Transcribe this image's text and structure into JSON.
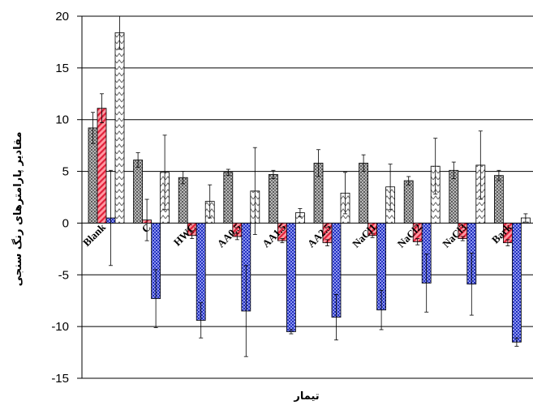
{
  "chart_data": {
    "type": "bar",
    "title": "",
    "xlabel": "تیمار",
    "ylabel": "مقادیر پارامترهای رنگ سنجی",
    "ylim": [
      -15,
      20
    ],
    "y_ticks": [
      20,
      15,
      10,
      5,
      0,
      -5,
      -10,
      -15
    ],
    "grid": true,
    "legend": "none",
    "categories": [
      "Blank",
      "C",
      "HWC",
      "AA0.5",
      "AA1.5",
      "AA2.5",
      "NaCl1",
      "NaCl2",
      "NaCl3",
      "Bark"
    ],
    "series": [
      {
        "pattern": "gray-dots",
        "values": [
          9.2,
          6.1,
          4.4,
          4.9,
          4.7,
          5.8,
          5.8,
          4.1,
          5.1,
          4.6
        ],
        "errors": [
          1.5,
          0.7,
          0.6,
          0.3,
          0.4,
          1.3,
          0.8,
          0.4,
          0.8,
          0.5
        ]
      },
      {
        "pattern": "red-hatch",
        "values": [
          11.1,
          0.3,
          -1.2,
          -1.3,
          -1.7,
          -1.9,
          -1.2,
          -1.8,
          -1.5,
          -1.9
        ],
        "errors": [
          1.4,
          2.0,
          0.3,
          0.3,
          0.2,
          0.3,
          0.2,
          0.3,
          0.2,
          0.3
        ]
      },
      {
        "pattern": "blue-dots",
        "values": [
          0.5,
          -7.3,
          -9.4,
          -8.5,
          -10.5,
          -9.1,
          -8.4,
          -5.8,
          -5.9,
          -11.5
        ],
        "errors": [
          4.6,
          2.8,
          1.7,
          4.4,
          0.2,
          2.2,
          1.9,
          2.8,
          3.0,
          0.4
        ]
      },
      {
        "pattern": "zigzag",
        "values": [
          18.4,
          4.9,
          2.1,
          3.1,
          1.0,
          2.9,
          3.5,
          5.5,
          5.6,
          0.5
        ],
        "errors": [
          1.6,
          3.6,
          1.6,
          4.2,
          0.4,
          2.0,
          2.2,
          2.7,
          3.3,
          0.4
        ]
      }
    ],
    "colors": {
      "series_0": "#a9a9a9",
      "series_1": "#e8404f",
      "series_2": "#2b3bc0",
      "series_3": "#ffffff",
      "axis": "#000000"
    }
  }
}
